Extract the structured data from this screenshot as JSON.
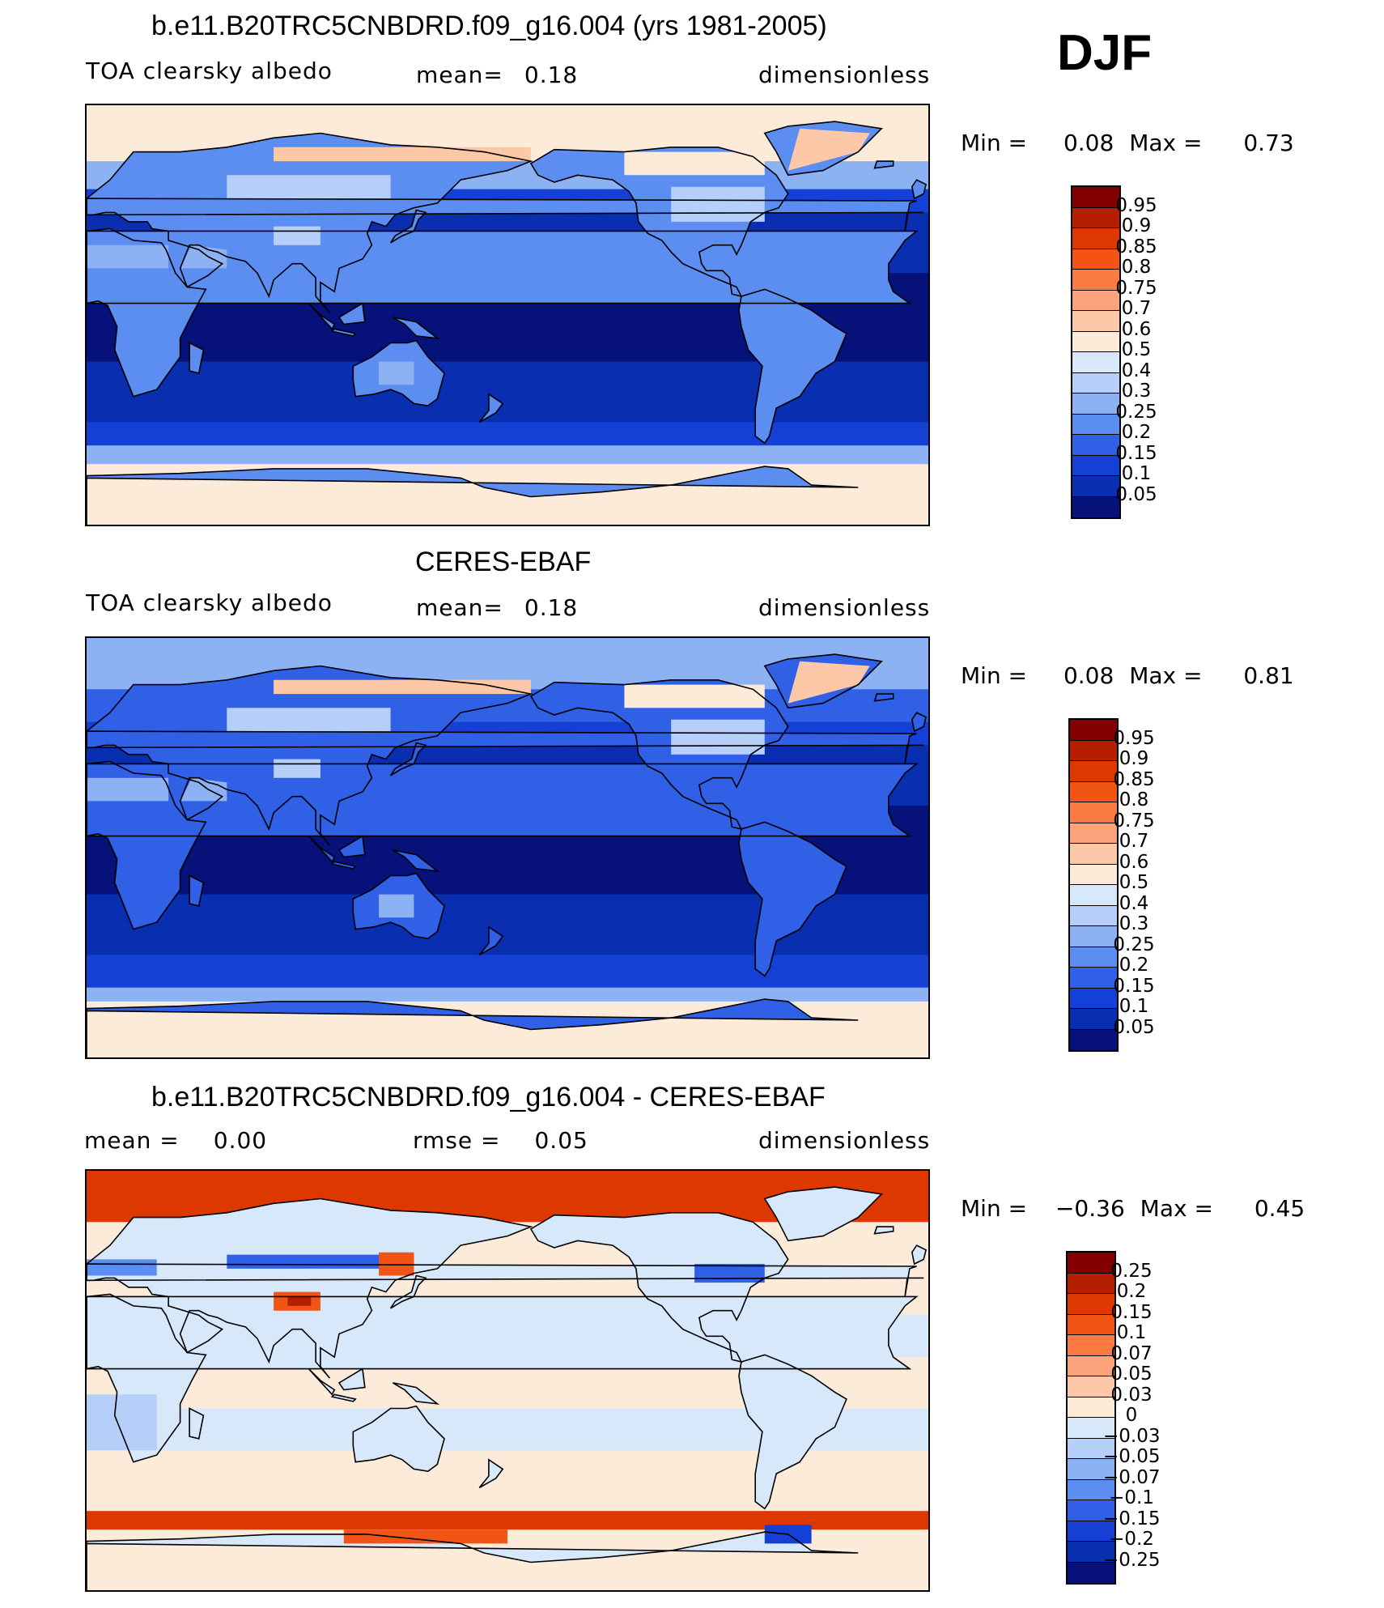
{
  "season": "DJF",
  "panels": [
    {
      "title": "b.e11.B20TRC5CNBDRD.f09_g16.004 (yrs 1981-2005)",
      "left_label": "TOA clearsky albedo",
      "center_label": "mean=",
      "center_value": "0.18",
      "right_label": "dimensionless",
      "min_label": "Min =",
      "min_value": "0.08",
      "max_label": "Max =",
      "max_value": "0.73",
      "colorbar_labels": [
        "0.95",
        "0.9",
        "0.85",
        "0.8",
        "0.75",
        "0.7",
        "0.6",
        "0.5",
        "0.4",
        "0.3",
        "0.25",
        "0.2",
        "0.15",
        "0.1",
        "0.05"
      ],
      "colorbar_colors": [
        "#820000",
        "#b51e00",
        "#dc3800",
        "#f25416",
        "#fc7a44",
        "#fca37c",
        "#fdc8a8",
        "#fdebd9",
        "#d8e8fb",
        "#b5cff8",
        "#8db2f4",
        "#5c8df0",
        "#3060e6",
        "#1440d6",
        "#0a2eb0",
        "#06127a"
      ],
      "field": "model"
    },
    {
      "title": "CERES-EBAF",
      "left_label": "TOA clearsky albedo",
      "center_label": "mean=",
      "center_value": "0.18",
      "right_label": "dimensionless",
      "min_label": "Min =",
      "min_value": "0.08",
      "max_label": "Max =",
      "max_value": "0.81",
      "colorbar_labels": [
        "0.95",
        "0.9",
        "0.85",
        "0.8",
        "0.75",
        "0.7",
        "0.6",
        "0.5",
        "0.4",
        "0.3",
        "0.25",
        "0.2",
        "0.15",
        "0.1",
        "0.05"
      ],
      "colorbar_colors": [
        "#820000",
        "#b51e00",
        "#dc3800",
        "#f25416",
        "#fc7a44",
        "#fca37c",
        "#fdc8a8",
        "#fdebd9",
        "#d8e8fb",
        "#b5cff8",
        "#8db2f4",
        "#5c8df0",
        "#3060e6",
        "#1440d6",
        "#0a2eb0",
        "#06127a"
      ],
      "field": "obs"
    },
    {
      "title": "b.e11.B20TRC5CNBDRD.f09_g16.004 - CERES-EBAF",
      "left_label": "mean =",
      "left_value": "0.00",
      "center_label": "rmse =",
      "center_value": "0.05",
      "right_label": "dimensionless",
      "min_label": "Min =",
      "min_value": "−0.36",
      "max_label": "Max =",
      "max_value": "0.45",
      "colorbar_labels": [
        "0.25",
        "0.2",
        "0.15",
        "0.1",
        "0.07",
        "0.05",
        "0.03",
        "0",
        "−0.03",
        "−0.05",
        "−0.07",
        "−0.1",
        "−0.15",
        "−0.2",
        "−0.25"
      ],
      "colorbar_colors": [
        "#820000",
        "#b51e00",
        "#dc3800",
        "#f25416",
        "#fc7a44",
        "#fca37c",
        "#fdc8a8",
        "#fdebd9",
        "#d8e8fb",
        "#b5cff8",
        "#8db2f4",
        "#5c8df0",
        "#3060e6",
        "#1440d6",
        "#0a2eb0",
        "#06127a"
      ],
      "field": "diff"
    }
  ]
}
